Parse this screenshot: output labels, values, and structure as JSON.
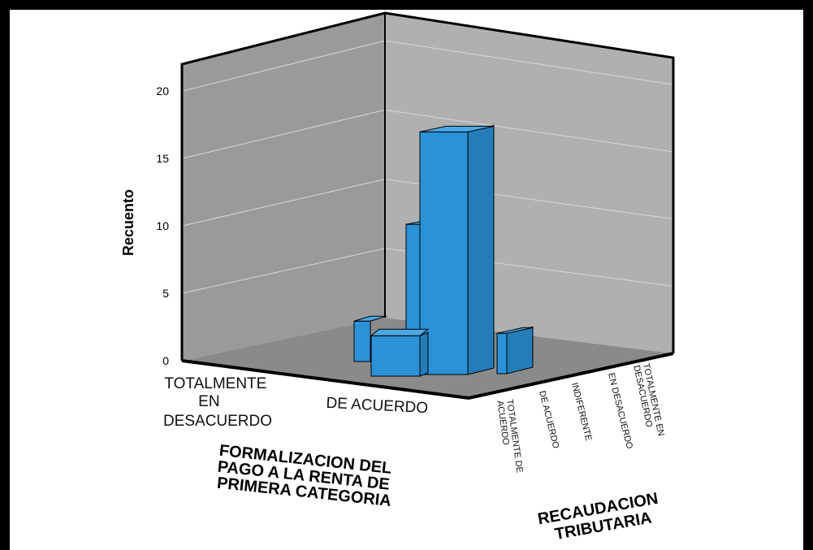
{
  "chart_data": {
    "type": "bar",
    "subtype": "3d-bar",
    "ylabel": "Recuento",
    "ylim": [
      0,
      22
    ],
    "yticks": [
      0,
      5,
      10,
      15,
      20
    ],
    "x_axis": {
      "title": [
        "FORMALIZACION DEL",
        "PAGO A LA RENTA DE",
        "PRIMERA CATEGORIA"
      ],
      "categories": [
        [
          "TOTALMENTE",
          "EN",
          "DESACUERDO"
        ],
        [
          "DE ACUERDO"
        ]
      ]
    },
    "z_axis": {
      "title": [
        "RECAUDACION",
        "TRIBUTARIA"
      ],
      "categories": [
        [
          "TOTALMENTE DE",
          "ACUERDO"
        ],
        [
          "DE ACUERDO"
        ],
        [
          "INDIFERENTE"
        ],
        [
          "EN DESACUERDO"
        ],
        [
          "TOTALMENTE EN",
          "DESACUERDO"
        ]
      ]
    },
    "bars": [
      {
        "x": "DE ACUERDO",
        "z": "TOTALMENTE DE ACUERDO",
        "value": 3
      },
      {
        "x": "DE ACUERDO",
        "z": "DE ACUERDO",
        "value": 18
      },
      {
        "x": "DE ACUERDO",
        "z": "INDIFERENTE",
        "value": 3
      },
      {
        "x": "DE ACUERDO",
        "z": "EN DESACUERDO",
        "value": 10
      },
      {
        "x": "DE ACUERDO",
        "z": "TOTALMENTE EN DESACUERDO",
        "value": 3
      }
    ],
    "colors": {
      "bar_front": "#2b92d8",
      "bar_side": "#247cb8",
      "bar_top": "#4aa8e6",
      "left_wall": "#9a9a9a",
      "back_wall": "#b0b0b0",
      "floor": "#8a8a8a"
    },
    "grid": true
  }
}
